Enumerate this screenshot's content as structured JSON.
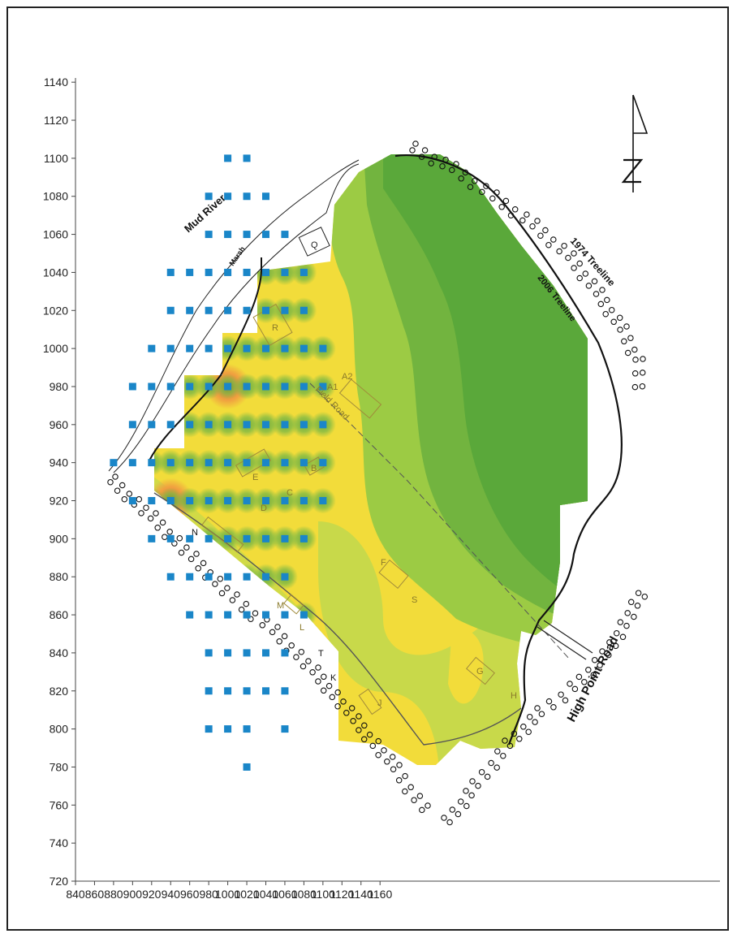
{
  "chart_data": {
    "type": "heatmap",
    "title": "",
    "xlabel": "",
    "ylabel": "",
    "xlim": [
      840,
      1170
    ],
    "ylim": [
      720,
      1145
    ],
    "x_ticks": [
      840,
      860,
      880,
      900,
      920,
      940,
      960,
      980,
      1000,
      1020,
      1040,
      1060,
      1080,
      1100,
      1120,
      1140,
      1160
    ],
    "y_ticks": [
      720,
      740,
      760,
      780,
      800,
      820,
      840,
      860,
      880,
      900,
      920,
      940,
      960,
      980,
      1000,
      1020,
      1040,
      1060,
      1080,
      1100,
      1120,
      1140
    ],
    "grid": false,
    "sample_points": [
      [
        1000,
        1100
      ],
      [
        1020,
        1100
      ],
      [
        980,
        1080
      ],
      [
        1000,
        1080
      ],
      [
        1020,
        1080
      ],
      [
        1040,
        1080
      ],
      [
        980,
        1060
      ],
      [
        1000,
        1060
      ],
      [
        1020,
        1060
      ],
      [
        1040,
        1060
      ],
      [
        1060,
        1060
      ],
      [
        940,
        1040
      ],
      [
        960,
        1040
      ],
      [
        980,
        1040
      ],
      [
        1000,
        1040
      ],
      [
        1020,
        1040
      ],
      [
        1040,
        1040
      ],
      [
        1060,
        1040
      ],
      [
        1080,
        1040
      ],
      [
        940,
        1020
      ],
      [
        960,
        1020
      ],
      [
        980,
        1020
      ],
      [
        1000,
        1020
      ],
      [
        1020,
        1020
      ],
      [
        1040,
        1020
      ],
      [
        1060,
        1020
      ],
      [
        1080,
        1020
      ],
      [
        920,
        1000
      ],
      [
        940,
        1000
      ],
      [
        960,
        1000
      ],
      [
        980,
        1000
      ],
      [
        1000,
        1000
      ],
      [
        1020,
        1000
      ],
      [
        1040,
        1000
      ],
      [
        1060,
        1000
      ],
      [
        1080,
        1000
      ],
      [
        1100,
        1000
      ],
      [
        900,
        980
      ],
      [
        920,
        980
      ],
      [
        940,
        980
      ],
      [
        960,
        980
      ],
      [
        980,
        980
      ],
      [
        1000,
        980
      ],
      [
        1020,
        980
      ],
      [
        1040,
        980
      ],
      [
        1060,
        980
      ],
      [
        1080,
        980
      ],
      [
        1100,
        980
      ],
      [
        900,
        960
      ],
      [
        920,
        960
      ],
      [
        940,
        960
      ],
      [
        960,
        960
      ],
      [
        980,
        960
      ],
      [
        1000,
        960
      ],
      [
        1020,
        960
      ],
      [
        1040,
        960
      ],
      [
        1060,
        960
      ],
      [
        1080,
        960
      ],
      [
        1100,
        960
      ],
      [
        880,
        940
      ],
      [
        900,
        940
      ],
      [
        920,
        940
      ],
      [
        940,
        940
      ],
      [
        960,
        940
      ],
      [
        980,
        940
      ],
      [
        1000,
        940
      ],
      [
        1020,
        940
      ],
      [
        1040,
        940
      ],
      [
        1060,
        940
      ],
      [
        1080,
        940
      ],
      [
        1100,
        940
      ],
      [
        900,
        920
      ],
      [
        920,
        920
      ],
      [
        940,
        920
      ],
      [
        960,
        920
      ],
      [
        980,
        920
      ],
      [
        1000,
        920
      ],
      [
        1020,
        920
      ],
      [
        1040,
        920
      ],
      [
        1060,
        920
      ],
      [
        1080,
        920
      ],
      [
        1100,
        920
      ],
      [
        920,
        900
      ],
      [
        940,
        900
      ],
      [
        960,
        900
      ],
      [
        980,
        900
      ],
      [
        1000,
        900
      ],
      [
        1020,
        900
      ],
      [
        1040,
        900
      ],
      [
        1060,
        900
      ],
      [
        1080,
        900
      ],
      [
        940,
        880
      ],
      [
        960,
        880
      ],
      [
        980,
        880
      ],
      [
        1000,
        880
      ],
      [
        1020,
        880
      ],
      [
        1040,
        880
      ],
      [
        1060,
        880
      ],
      [
        960,
        860
      ],
      [
        980,
        860
      ],
      [
        1000,
        860
      ],
      [
        1020,
        860
      ],
      [
        1040,
        860
      ],
      [
        1060,
        860
      ],
      [
        1080,
        860
      ],
      [
        980,
        840
      ],
      [
        1000,
        840
      ],
      [
        1020,
        840
      ],
      [
        1040,
        840
      ],
      [
        1060,
        840
      ],
      [
        980,
        820
      ],
      [
        1000,
        820
      ],
      [
        1020,
        820
      ],
      [
        1040,
        820
      ],
      [
        1060,
        820
      ],
      [
        980,
        800
      ],
      [
        1000,
        800
      ],
      [
        1020,
        800
      ],
      [
        1060,
        800
      ],
      [
        1020,
        780
      ]
    ],
    "hotspots": [
      {
        "x": 980,
        "y": 820,
        "level": "high"
      },
      {
        "x": 1060,
        "y": 800,
        "level": "elevated"
      },
      {
        "x": 940,
        "y": 920,
        "level": "elevated"
      },
      {
        "x": 920,
        "y": 1000,
        "level": "elevated"
      },
      {
        "x": 940,
        "y": 1020,
        "level": "elevated"
      },
      {
        "x": 1000,
        "y": 980,
        "level": "elevated"
      }
    ],
    "colors": {
      "low": "#5aa83a",
      "low_mid": "#7bbd3f",
      "mid": "#c8d94a",
      "mid_high": "#f2dc3a",
      "high": "#f0a040",
      "very_high": "#e02828",
      "sample_point": "#1a86c8"
    }
  },
  "map_labels": {
    "river": "Mud River",
    "marsh": "Marsh",
    "treeline_1974": "1974 Treeline",
    "treeline_2006": "2006 Treeline",
    "road": "High Point Road",
    "field_road": "Field Road",
    "features": [
      "A1",
      "A2",
      "B",
      "C",
      "D",
      "E",
      "F",
      "G",
      "H",
      "J",
      "K",
      "L",
      "M",
      "N",
      "Q",
      "R",
      "S",
      "T"
    ]
  }
}
